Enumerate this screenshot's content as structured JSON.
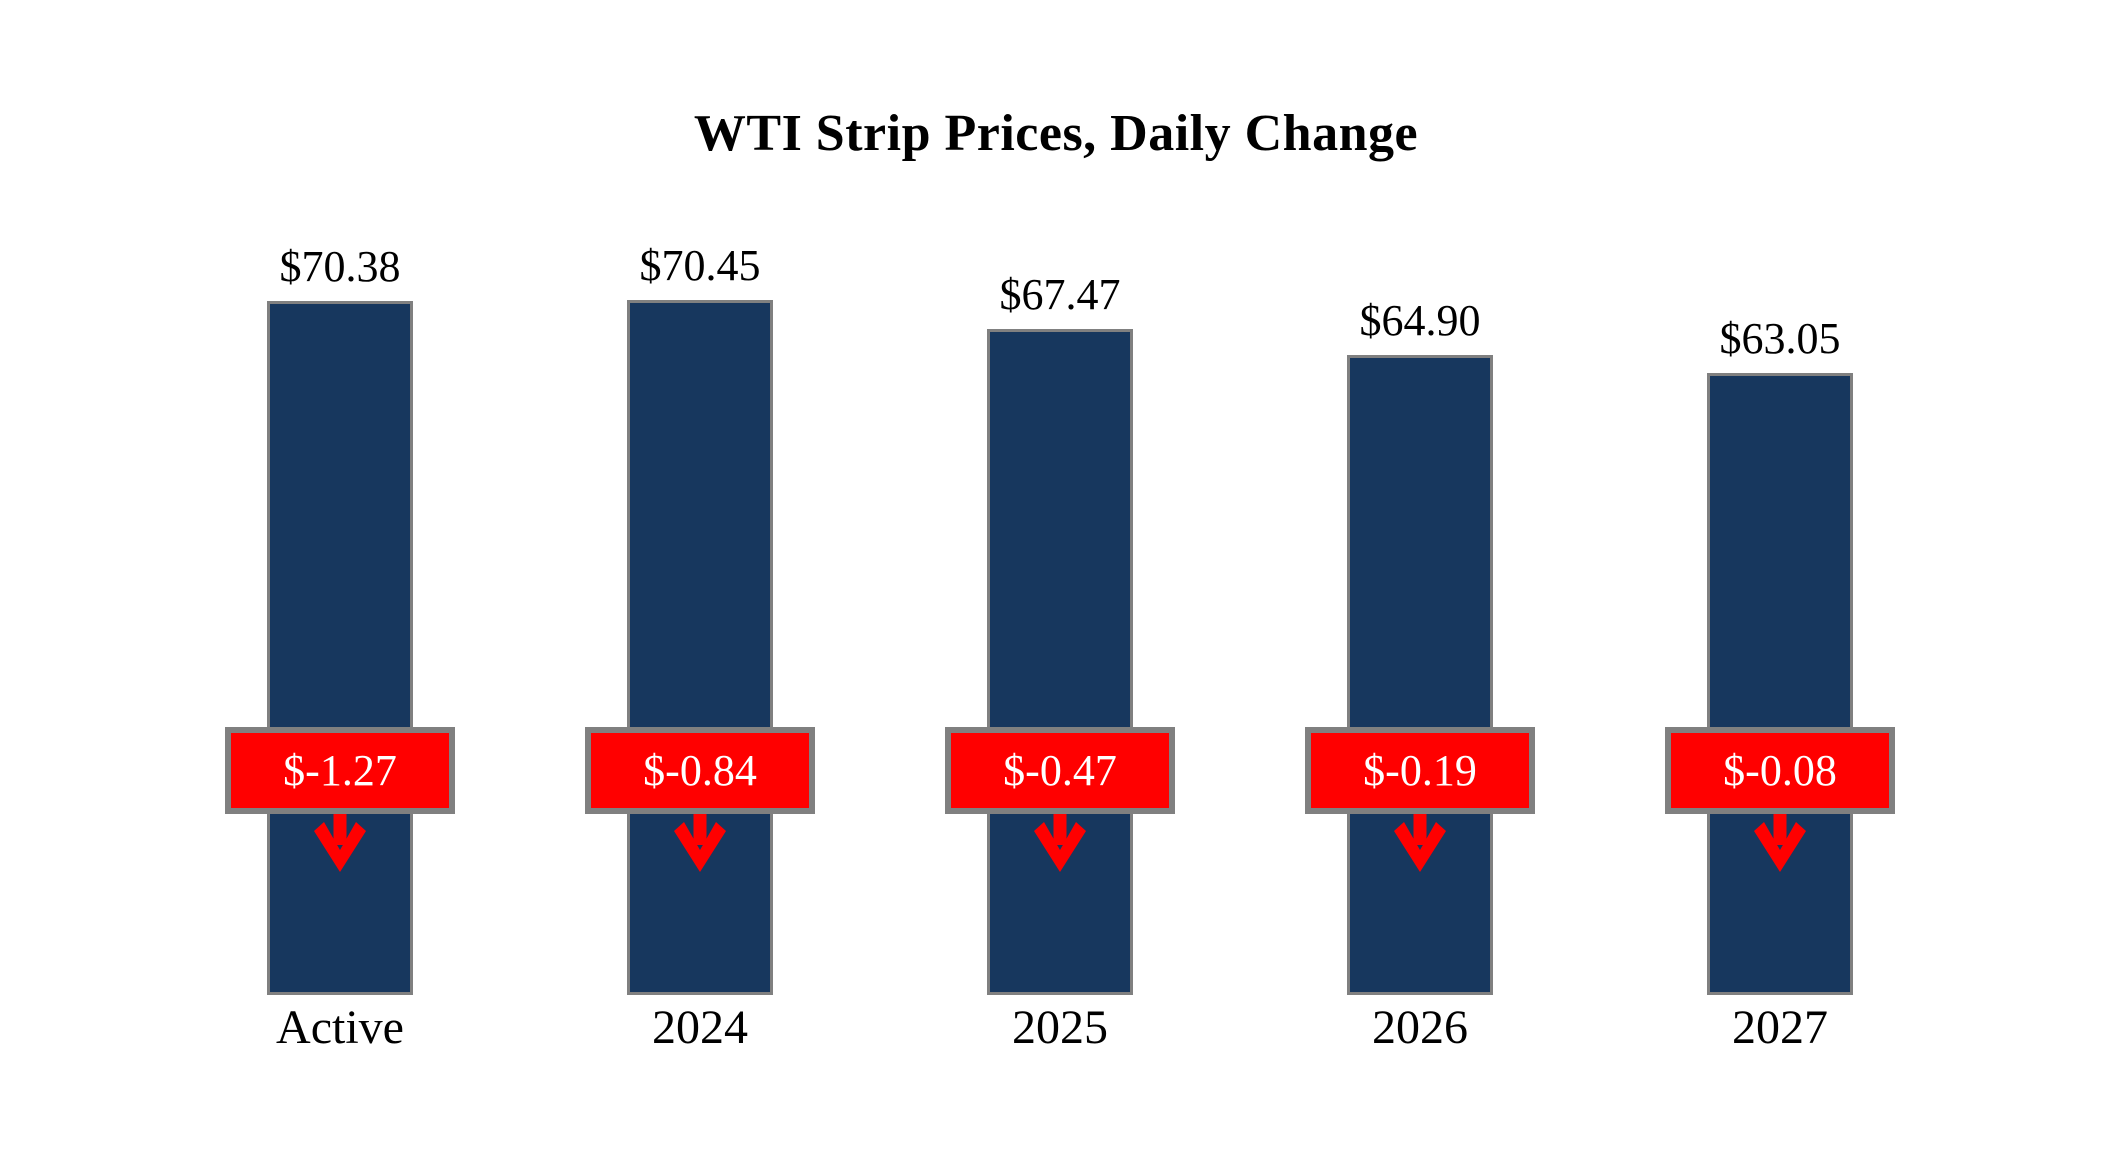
{
  "chart_data": {
    "type": "bar",
    "title": "WTI Strip Prices, Daily Change",
    "categories": [
      "Active",
      "2024",
      "2025",
      "2026",
      "2027"
    ],
    "series": [
      {
        "name": "WTI Strip Prices",
        "values": [
          70.38,
          70.45,
          67.47,
          64.9,
          63.05
        ]
      },
      {
        "name": "Daily Change",
        "values": [
          -1.27,
          -0.84,
          -0.47,
          -0.19,
          -0.08
        ]
      }
    ],
    "points": [
      {
        "category": "Active",
        "price": 70.38,
        "price_label": "$70.38",
        "change": -1.27,
        "change_label": "$-1.27"
      },
      {
        "category": "2024",
        "price": 70.45,
        "price_label": "$70.45",
        "change": -0.84,
        "change_label": "$-0.84"
      },
      {
        "category": "2025",
        "price": 67.47,
        "price_label": "$67.47",
        "change": -0.47,
        "change_label": "$-0.47"
      },
      {
        "category": "2026",
        "price": 64.9,
        "price_label": "$64.90",
        "change": -0.19,
        "change_label": "$-0.19"
      },
      {
        "category": "2027",
        "price": 63.05,
        "price_label": "$63.05",
        "change": -0.08,
        "change_label": "$-0.08"
      }
    ],
    "xlabel": "",
    "ylabel": "",
    "ylim": [
      0,
      70.45
    ],
    "axes_hidden": true,
    "grid": false,
    "legend": "none",
    "colors": {
      "bar_fill": "#17375E",
      "bar_border": "#808080",
      "badge_fill": "#FF0000",
      "badge_border": "#808080",
      "badge_text": "#FFFFFF",
      "arrow": "#FF0000",
      "title_text": "#000000",
      "label_text": "#000000",
      "background": "#FFFFFF"
    }
  }
}
